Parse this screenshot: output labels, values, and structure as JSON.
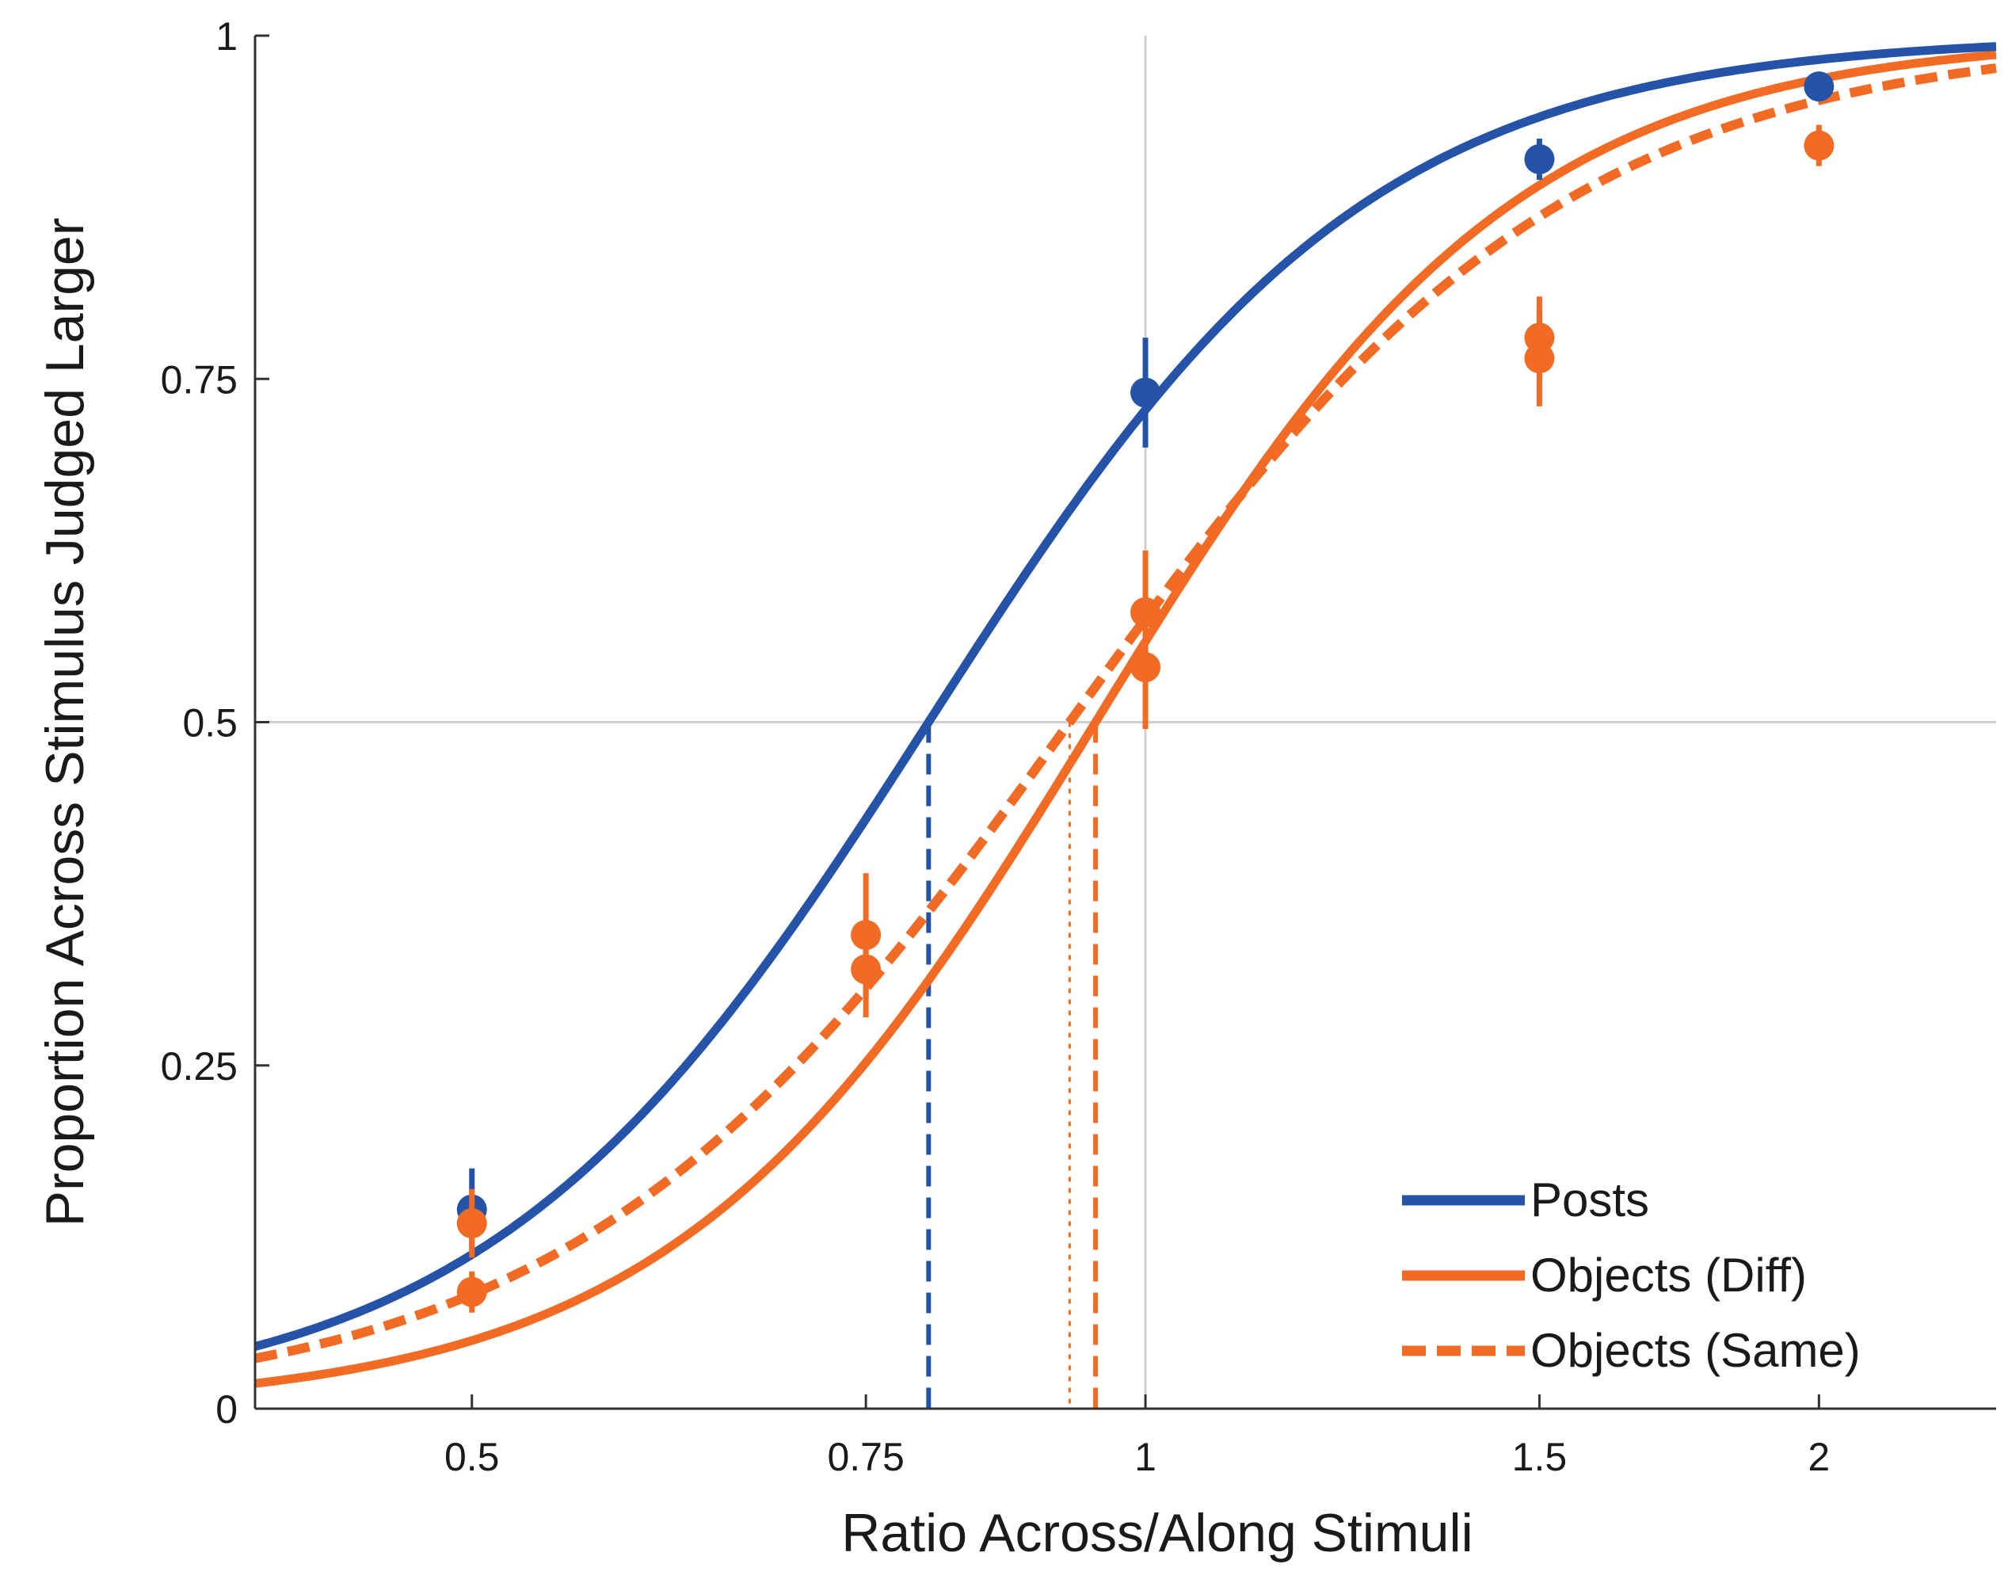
{
  "chart_data": {
    "type": "line",
    "xscale": "log",
    "xlabel": "Ratio Across/Along Stimuli",
    "ylabel": "Proportion Across Stimulus Judged Larger",
    "xlim": [
      0.4,
      2.4
    ],
    "ylim": [
      0,
      1
    ],
    "grid": "reference lines at x=1 and y=0.5",
    "xticks": [
      0.5,
      0.75,
      1,
      1.5,
      2
    ],
    "xtick_labels": [
      "0.5",
      "0.75",
      "1",
      "1.5",
      "2"
    ],
    "yticks": [
      0,
      0.25,
      0.5,
      0.75,
      1
    ],
    "ytick_labels": [
      "0",
      "0.25",
      "0.5",
      "0.75",
      "1"
    ],
    "legend_position": "bottom-right",
    "series": [
      {
        "name": "Posts",
        "color": "#2453A8",
        "style": "solid",
        "pse": 0.8,
        "slope": 4.4,
        "points": [
          {
            "x": 0.5,
            "y": 0.145,
            "err": 0.03
          },
          {
            "x": 1,
            "y": 0.74,
            "err": 0.04
          },
          {
            "x": 1.5,
            "y": 0.91,
            "err": 0.015
          },
          {
            "x": 2,
            "y": 0.963,
            "err": 0.01
          }
        ]
      },
      {
        "name": "Objects (Diff)",
        "color": "#F26B25",
        "style": "solid",
        "pse": 0.95,
        "slope": 4.6,
        "points": [
          {
            "x": 0.5,
            "y": 0.085,
            "err": 0.015
          },
          {
            "x": 0.75,
            "y": 0.32,
            "err": 0.035
          },
          {
            "x": 1,
            "y": 0.54,
            "err": 0.045
          },
          {
            "x": 1.5,
            "y": 0.765,
            "err": 0.035
          },
          {
            "x": 2,
            "y": 0.92,
            "err": 0.015
          }
        ]
      },
      {
        "name": "Objects (Same)",
        "color": "#F26B25",
        "style": "dashed",
        "pse": 0.925,
        "slope": 3.9,
        "points": [
          {
            "x": 0.5,
            "y": 0.135,
            "err": 0.025
          },
          {
            "x": 0.75,
            "y": 0.345,
            "err": 0.045
          },
          {
            "x": 1,
            "y": 0.58,
            "err": 0.045
          },
          {
            "x": 1.5,
            "y": 0.78,
            "err": 0.03
          }
        ]
      }
    ],
    "pse_markers": [
      {
        "series": "Posts",
        "x": 0.8,
        "style": "dashed",
        "color": "#2453A8"
      },
      {
        "series": "Objects (Same)",
        "x": 0.925,
        "style": "dotted",
        "color": "#F26B25"
      },
      {
        "series": "Objects (Diff)",
        "x": 0.95,
        "style": "dashed",
        "color": "#F26B25"
      }
    ]
  }
}
